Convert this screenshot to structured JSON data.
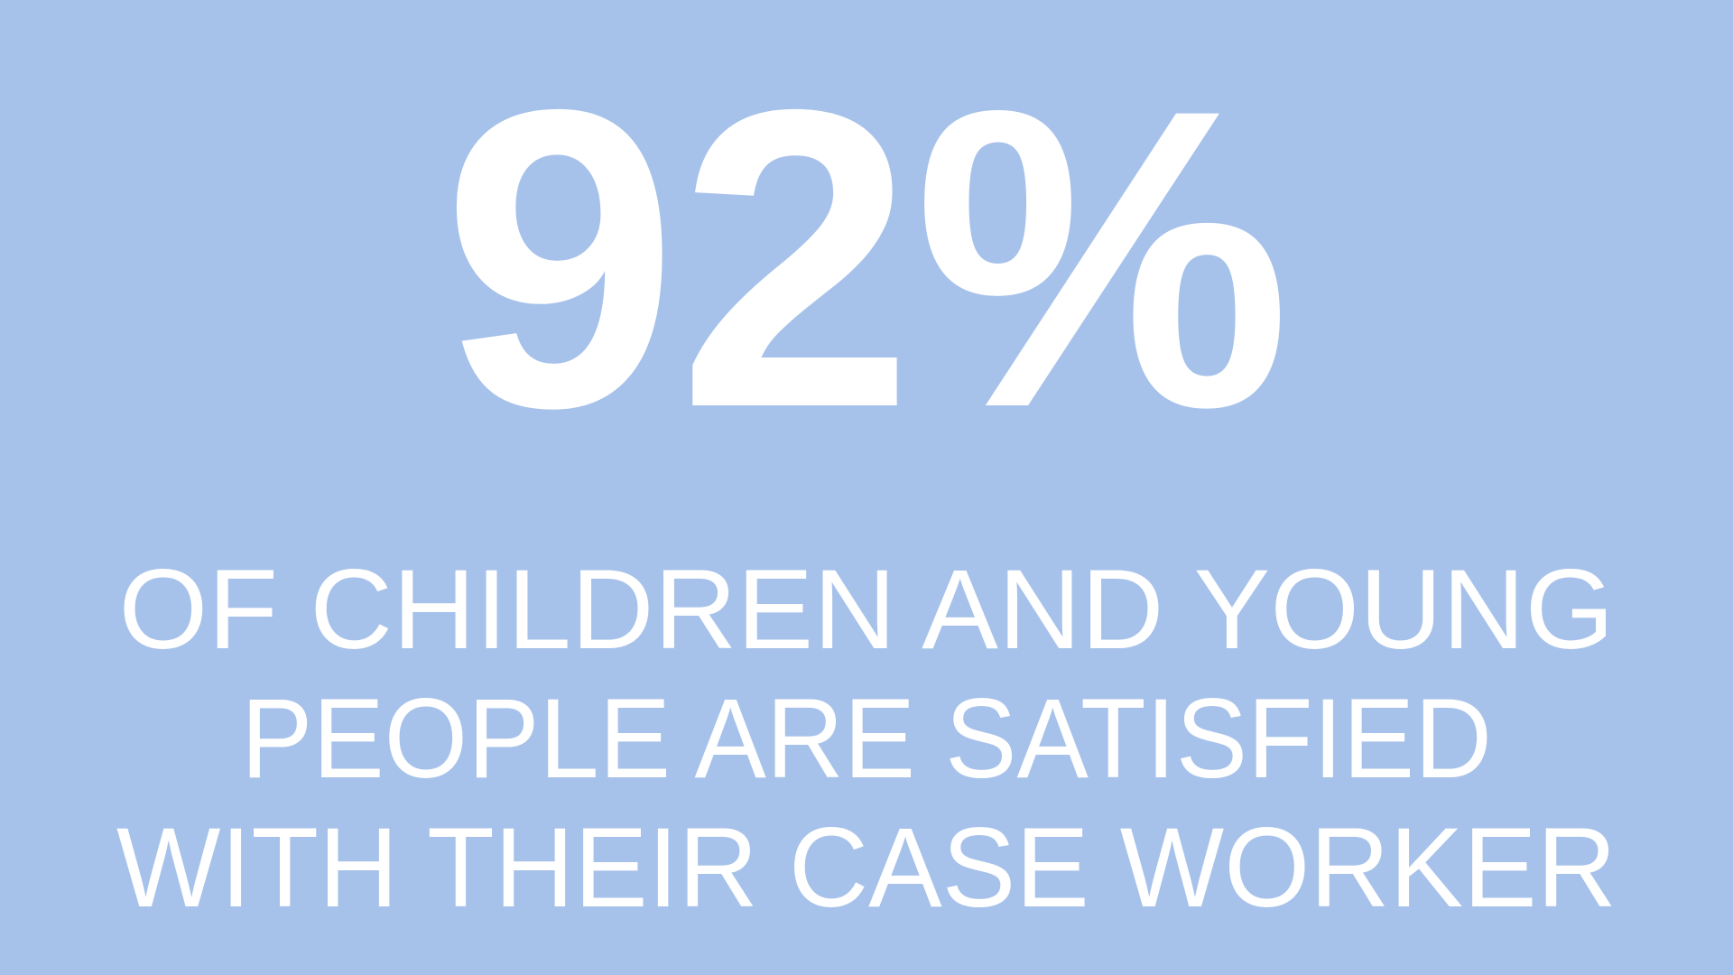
{
  "stat": {
    "value": "92%",
    "caption_lines": [
      "OF CHILDREN AND YOUNG",
      "PEOPLE ARE SATISFIED",
      "WITH THEIR CASE WORKER"
    ]
  }
}
